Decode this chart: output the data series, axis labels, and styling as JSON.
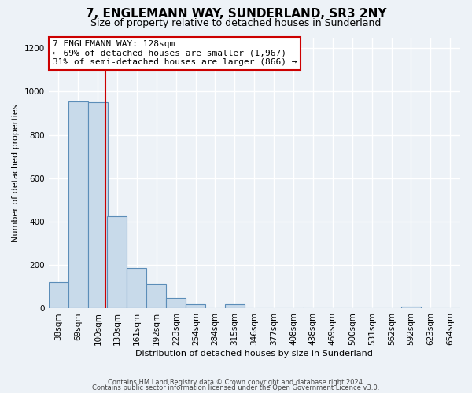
{
  "title": "7, ENGLEMANN WAY, SUNDERLAND, SR3 2NY",
  "subtitle": "Size of property relative to detached houses in Sunderland",
  "xlabel": "Distribution of detached houses by size in Sunderland",
  "ylabel": "Number of detached properties",
  "footer_line1": "Contains HM Land Registry data © Crown copyright and database right 2024.",
  "footer_line2": "Contains public sector information licensed under the Open Government Licence v3.0.",
  "bin_labels": [
    "38sqm",
    "69sqm",
    "100sqm",
    "130sqm",
    "161sqm",
    "192sqm",
    "223sqm",
    "254sqm",
    "284sqm",
    "315sqm",
    "346sqm",
    "377sqm",
    "408sqm",
    "438sqm",
    "469sqm",
    "500sqm",
    "531sqm",
    "562sqm",
    "592sqm",
    "623sqm",
    "654sqm"
  ],
  "bar_values": [
    120,
    955,
    950,
    425,
    185,
    115,
    48,
    20,
    0,
    18,
    0,
    0,
    0,
    0,
    0,
    0,
    0,
    0,
    8,
    0,
    0
  ],
  "bar_color": "#c8daea",
  "bar_edge_color": "#5b8db8",
  "property_size": 128,
  "bin_width": 31,
  "bin_starts": [
    38,
    69,
    100,
    130,
    161,
    192,
    223,
    254,
    284,
    315,
    346,
    377,
    408,
    438,
    469,
    500,
    531,
    562,
    592,
    623,
    654
  ],
  "annotation_line1": "7 ENGLEMANN WAY: 128sqm",
  "annotation_line2": "← 69% of detached houses are smaller (1,967)",
  "annotation_line3": "31% of semi-detached houses are larger (866) →",
  "annotation_box_color": "#ffffff",
  "annotation_box_edge_color": "#cc0000",
  "vline_color": "#cc0000",
  "ylim": [
    0,
    1250
  ],
  "yticks": [
    0,
    200,
    400,
    600,
    800,
    1000,
    1200
  ],
  "background_color": "#edf2f7",
  "grid_color": "#ffffff",
  "title_fontsize": 11,
  "subtitle_fontsize": 9,
  "axis_label_fontsize": 8,
  "tick_fontsize": 7.5,
  "footer_fontsize": 6
}
